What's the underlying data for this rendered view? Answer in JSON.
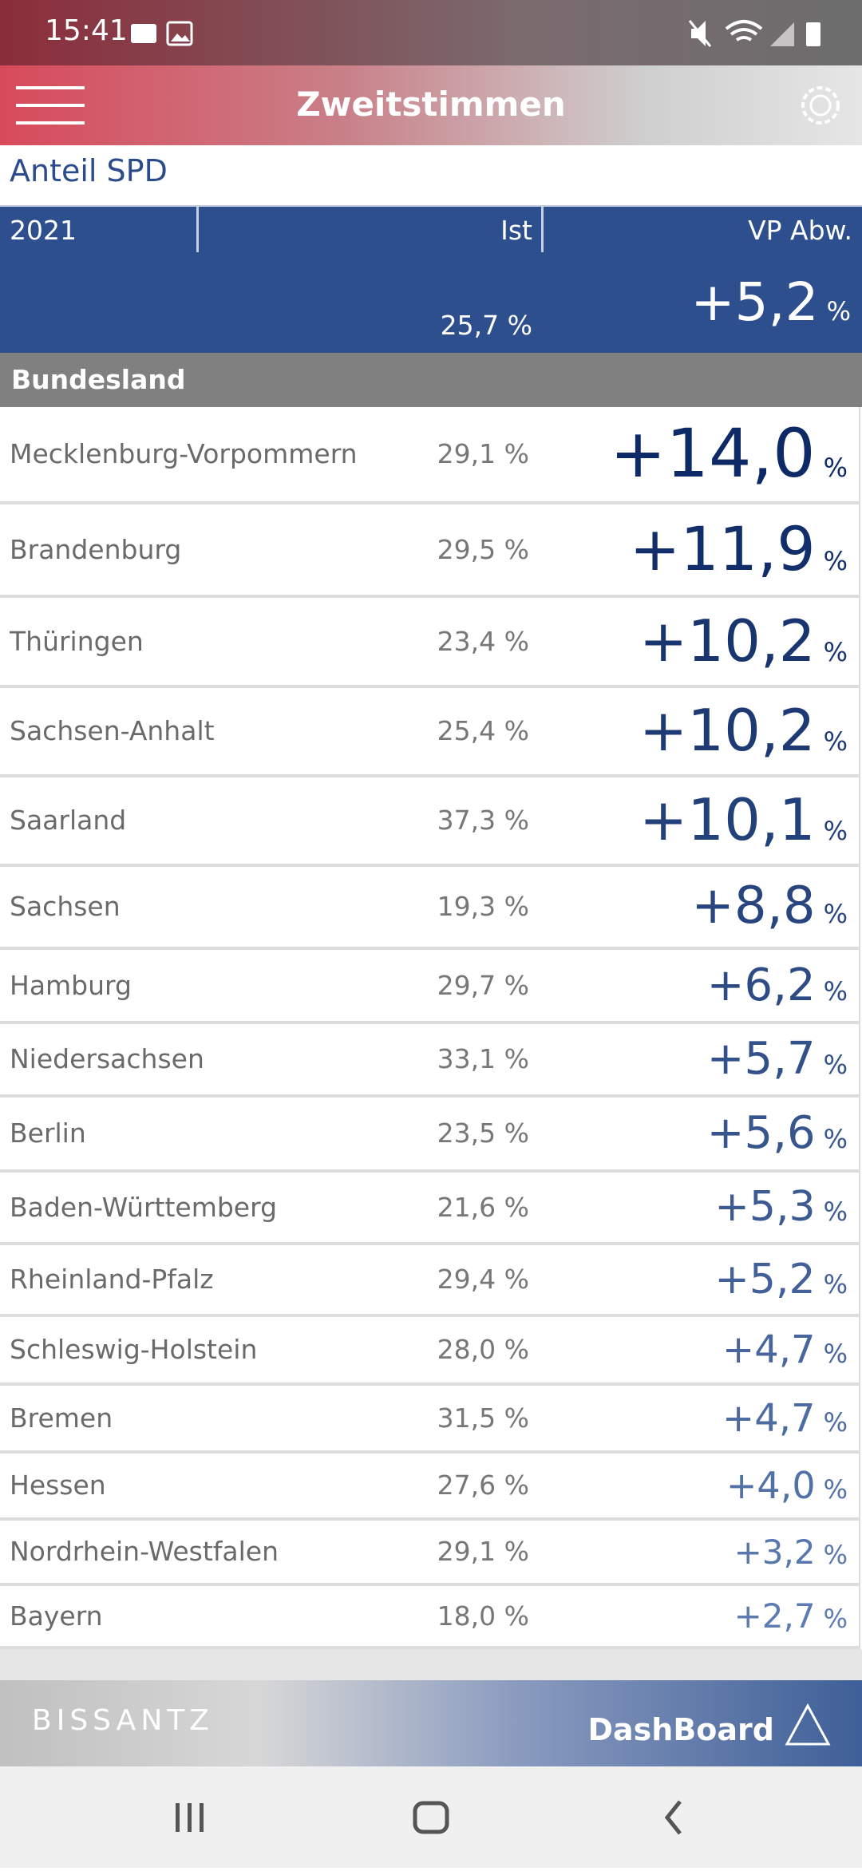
{
  "status_bar": {
    "time": "15:41"
  },
  "header": {
    "title": "Zweitstimmen"
  },
  "subtitle": "Anteil SPD",
  "table": {
    "columns": [
      "2021",
      "Ist",
      "VP Abw."
    ],
    "total": {
      "actual": "25,7 %",
      "deviation": "+5,2"
    },
    "deviation_unit": "%",
    "section": "Bundesland",
    "rows": [
      {
        "name": "Mecklenburg-Vorpommern",
        "actual": "29,1 %",
        "deviation": "+14,0"
      },
      {
        "name": "Brandenburg",
        "actual": "29,5 %",
        "deviation": "+11,9"
      },
      {
        "name": "Thüringen",
        "actual": "23,4 %",
        "deviation": "+10,2"
      },
      {
        "name": "Sachsen-Anhalt",
        "actual": "25,4 %",
        "deviation": "+10,2"
      },
      {
        "name": "Saarland",
        "actual": "37,3 %",
        "deviation": "+10,1"
      },
      {
        "name": "Sachsen",
        "actual": "19,3 %",
        "deviation": "+8,8"
      },
      {
        "name": "Hamburg",
        "actual": "29,7 %",
        "deviation": "+6,2"
      },
      {
        "name": "Niedersachsen",
        "actual": "33,1 %",
        "deviation": "+5,7"
      },
      {
        "name": "Berlin",
        "actual": "23,5 %",
        "deviation": "+5,6"
      },
      {
        "name": "Baden-Württemberg",
        "actual": "21,6 %",
        "deviation": "+5,3"
      },
      {
        "name": "Rheinland-Pfalz",
        "actual": "29,4 %",
        "deviation": "+5,2"
      },
      {
        "name": "Schleswig-Holstein",
        "actual": "28,0 %",
        "deviation": "+4,7"
      },
      {
        "name": "Bremen",
        "actual": "31,5 %",
        "deviation": "+4,7"
      },
      {
        "name": "Hessen",
        "actual": "27,6 %",
        "deviation": "+4,0"
      },
      {
        "name": "Nordrhein-Westfalen",
        "actual": "29,1 %",
        "deviation": "+3,2"
      },
      {
        "name": "Bayern",
        "actual": "18,0 %",
        "deviation": "+2,7"
      }
    ]
  },
  "footer": {
    "brand": "BISSANTZ",
    "app": "DashBoard"
  }
}
